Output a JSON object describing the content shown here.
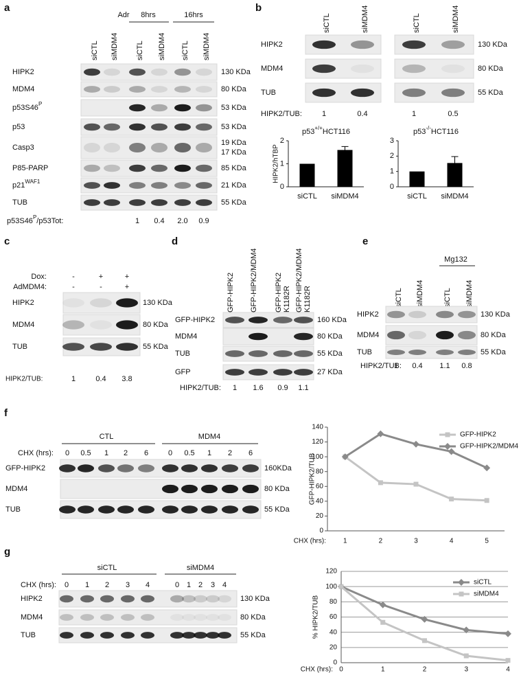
{
  "panels": {
    "a": {
      "label": "a",
      "treatment": "Adr",
      "time_groups": [
        "8hrs",
        "16hrs"
      ],
      "lanes": [
        "siCTL",
        "siMDM4",
        "siCTL",
        "siMDM4",
        "siCTL",
        "siMDM4"
      ],
      "rows": [
        {
          "name": "HIPK2",
          "kda": "130 KDa"
        },
        {
          "name": "MDM4",
          "kda": "80 KDa"
        },
        {
          "name": {
            "text": "p53S46",
            "sup": "P"
          },
          "kda": "53 KDa"
        },
        {
          "name": "p53",
          "kda": "53 KDa"
        },
        {
          "name": "Casp3",
          "kda": "19 KDa",
          "kda2": "17 KDa"
        },
        {
          "name": "P85-PARP",
          "kda": "85 KDa"
        },
        {
          "name": {
            "text": "p21",
            "sup": "WAF1"
          },
          "kda": "21 KDa"
        },
        {
          "name": "TUB",
          "kda": "55 KDa"
        }
      ],
      "ratio_label": {
        "text": "p53S46",
        "sup": "P",
        "rest": "/p53Tot:"
      },
      "ratios": [
        "1",
        "0.4",
        "2.0",
        "0.9"
      ]
    },
    "b": {
      "label": "b",
      "lanes": [
        "siCTL",
        "siMDM4",
        "siCTL",
        "siMDM4"
      ],
      "rows": [
        {
          "name": "HIPK2",
          "kda": "130 KDa"
        },
        {
          "name": "MDM4",
          "kda": "80 KDa"
        },
        {
          "name": "TUB",
          "kda": "55 KDa"
        }
      ],
      "ratio_label": "HIPK2/TUB:",
      "ratios": [
        "1",
        "0.4",
        "1",
        "0.5"
      ]
    },
    "c": {
      "label": "c",
      "conditions": [
        {
          "name": "Dox:",
          "marks": [
            "-",
            "+",
            "+"
          ]
        },
        {
          "name": "AdMDM4:",
          "marks": [
            "-",
            "-",
            "+"
          ]
        }
      ],
      "rows": [
        {
          "name": "HIPK2",
          "kda": "130 KDa"
        },
        {
          "name": "MDM4",
          "kda": "80 KDa"
        },
        {
          "name": "TUB",
          "kda": "55 KDa"
        }
      ],
      "ratio_label": "HIPK2/TUB:",
      "ratios": [
        "1",
        "0.4",
        "3.8"
      ]
    },
    "d": {
      "label": "d",
      "lanes": [
        [
          "GFP-HIPK2"
        ],
        [
          "GFP-HIPK2/MDM4"
        ],
        [
          "GFP-HIPK2",
          "K1182R"
        ],
        [
          "GFP-HIPK2/MDM4",
          "K1182R"
        ]
      ],
      "rows": [
        {
          "name": "GFP-HIPK2",
          "kda": "160 KDa"
        },
        {
          "name": "MDM4",
          "kda": "80 KDa"
        },
        {
          "name": "TUB",
          "kda": "55 KDa"
        },
        {
          "name": "GFP",
          "kda": "27 KDa"
        }
      ],
      "ratio_label": "HIPK2/TUB:",
      "ratios": [
        "1",
        "1.6",
        "0.9",
        "1.1"
      ]
    },
    "e": {
      "label": "e",
      "treatment": "Mg132",
      "lanes": [
        "siCTL",
        "siMDM4",
        "siCTL",
        "siMDM4"
      ],
      "rows": [
        {
          "name": "HIPK2",
          "kda": "130 KDa"
        },
        {
          "name": "MDM4",
          "kda": "80 KDa"
        },
        {
          "name": "TUB",
          "kda": "55 KDa"
        }
      ],
      "ratio_label": "HIPK2/TUB:",
      "ratios": [
        "1",
        "0.4",
        "1.1",
        "0.8"
      ]
    },
    "f": {
      "label": "f",
      "groups": [
        "CTL",
        "MDM4"
      ],
      "time_label": "CHX (hrs):",
      "times": [
        "0",
        "0.5",
        "1",
        "2",
        "6",
        "0",
        "0.5",
        "1",
        "2",
        "6"
      ],
      "rows": [
        {
          "name": "GFP-HIPK2",
          "kda": "160KDa"
        },
        {
          "name": "MDM4",
          "kda": "80 KDa"
        },
        {
          "name": "TUB",
          "kda": "55 KDa"
        }
      ]
    },
    "g": {
      "label": "g",
      "groups": [
        "siCTL",
        "siMDM4"
      ],
      "time_label": "CHX (hrs):",
      "times": [
        "0",
        "1",
        "2",
        "3",
        "4",
        "0",
        "1",
        "2",
        "3",
        "4"
      ],
      "rows": [
        {
          "name": "HIPK2",
          "kda": "130 KDa"
        },
        {
          "name": "MDM4",
          "kda": "80 KDa"
        },
        {
          "name": "TUB",
          "kda": "55 KDa"
        }
      ]
    }
  },
  "chart_data": [
    {
      "type": "bar",
      "title": {
        "text": "p53",
        "sup": "+/+",
        "rest": "HCT116"
      },
      "ylabel": "HIPK2/hTBP",
      "categories": [
        "siCTL",
        "siMDM4"
      ],
      "values": [
        1,
        1.6
      ],
      "errors": [
        null,
        0.15
      ],
      "color": "#000000",
      "ylim": [
        0,
        2
      ],
      "yticks": [
        0,
        1,
        2
      ]
    },
    {
      "type": "bar",
      "title": {
        "text": "p53",
        "sup": "-/-",
        "rest": "HCT116"
      },
      "categories": [
        "siCTL",
        "siMDM4"
      ],
      "values": [
        1,
        1.55
      ],
      "errors": [
        null,
        0.42
      ],
      "color": "#000000",
      "ylim": [
        0,
        3
      ],
      "yticks": [
        0,
        1,
        2,
        3
      ]
    },
    {
      "type": "line",
      "ylabel": "GFP-HIPK2/TUB",
      "xlabel": "CHX (hrs):",
      "categories": [
        1,
        2,
        3,
        4,
        5
      ],
      "series": [
        {
          "name": "GFP-HIPK2",
          "color": "#c4c4c4",
          "marker": "square",
          "values": [
            100,
            65,
            63,
            43,
            41
          ]
        },
        {
          "name": "GFP-HIPK2/MDM4",
          "color": "#8a8a8a",
          "marker": "diamond",
          "values": [
            100,
            131,
            117,
            107,
            85
          ]
        }
      ],
      "ylim": [
        0,
        140
      ],
      "yticks": [
        0,
        20,
        40,
        60,
        80,
        100,
        120,
        140
      ],
      "grid": false,
      "legend": "top-right"
    },
    {
      "type": "line",
      "ylabel": "% HIPK2/TUB",
      "xlabel": "CHX (hrs):",
      "categories": [
        0,
        1,
        2,
        3,
        4
      ],
      "series": [
        {
          "name": "siCTL",
          "color": "#8a8a8a",
          "marker": "diamond",
          "values": [
            100,
            76,
            57,
            43,
            38
          ]
        },
        {
          "name": "siMDM4",
          "color": "#c4c4c4",
          "marker": "square",
          "values": [
            100,
            53,
            29,
            9,
            3
          ]
        }
      ],
      "ylim": [
        0,
        120
      ],
      "yticks": [
        0,
        20,
        40,
        60,
        80,
        100,
        120
      ],
      "grid": true,
      "legend": "top-right"
    }
  ]
}
